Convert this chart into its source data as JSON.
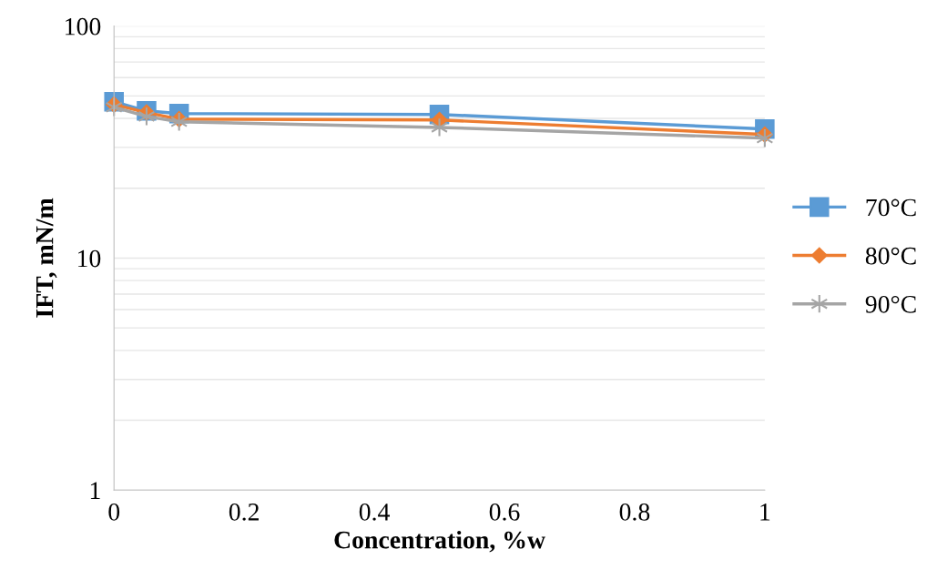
{
  "chart_data": {
    "type": "line",
    "xlabel": "Concentration, %w",
    "ylabel": "IFT, mN/m",
    "x": [
      0,
      0.05,
      0.1,
      0.5,
      1
    ],
    "series": [
      {
        "name": "70°C",
        "color": "#5b9bd5",
        "marker": "square",
        "values": [
          47.2,
          43.1,
          42,
          41.6,
          36
        ]
      },
      {
        "name": "80°C",
        "color": "#ed7d31",
        "marker": "diamond",
        "values": [
          45.9,
          42.4,
          39.7,
          39.4,
          34.1
        ]
      },
      {
        "name": "90°C",
        "color": "#a5a5a5",
        "marker": "cross",
        "values": [
          44.7,
          40.8,
          38.7,
          36.6,
          32.9
        ]
      }
    ],
    "log": "y",
    "xlim": [
      0,
      1
    ],
    "xticks": [
      0,
      {
        "value": 0.2,
        "label": "0.2"
      },
      {
        "value": 0.4,
        "label": "0.4"
      },
      {
        "value": 0.6,
        "label": "0.6"
      },
      {
        "value": 0.8,
        "label": "0.8"
      },
      1
    ],
    "ylim": [
      1,
      100
    ],
    "yticks": [
      1,
      10,
      100
    ],
    "grid": "y",
    "legend": "right",
    "line_style": "solid"
  }
}
